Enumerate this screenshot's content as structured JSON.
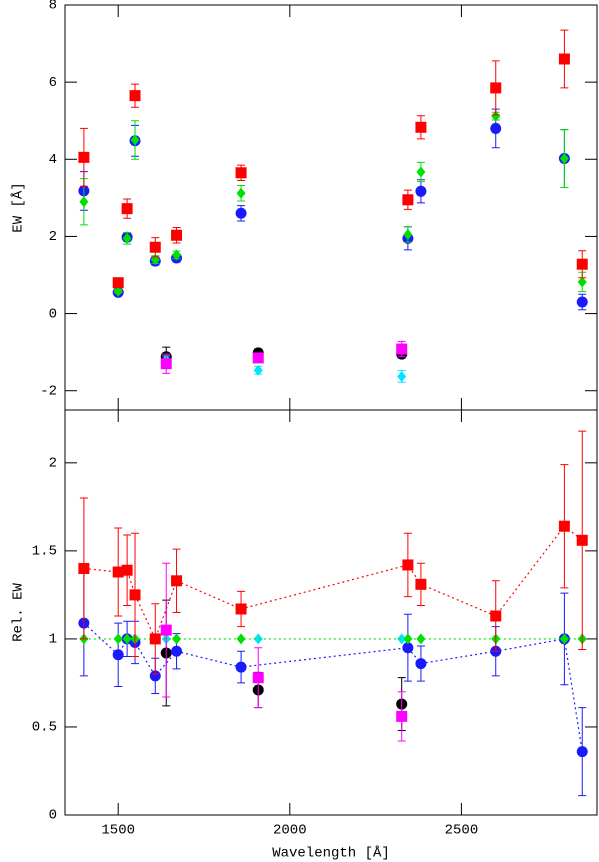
{
  "chart_data": [
    {
      "type": "scatter",
      "ylabel": "EW [Å]",
      "xlim": [
        1345,
        2895
      ],
      "xticks": [
        1500,
        2000,
        2500
      ],
      "ylim": [
        -2.5,
        8
      ],
      "yticks": [
        -2,
        0,
        2,
        4,
        6,
        8
      ],
      "series": [
        {
          "color": "#000000",
          "marker": "circle",
          "x": [
            1640,
            1908,
            2326
          ],
          "values": [
            -1.12,
            -1.02,
            -1.05
          ],
          "errors": [
            0.25,
            0.1,
            0.1
          ]
        },
        {
          "color": "#00e5ff",
          "marker": "diamond",
          "x": [
            1640,
            1908,
            2326
          ],
          "values": [
            -1.2,
            -1.47,
            -1.63
          ],
          "errors": [
            0.1,
            0.1,
            0.15
          ]
        },
        {
          "color": "#ff00ff",
          "marker": "square",
          "x": [
            1640,
            1908,
            2326
          ],
          "values": [
            -1.3,
            -1.15,
            -0.92
          ],
          "errors": [
            0.25,
            0.1,
            0.2
          ]
        },
        {
          "color": "#1a1aff",
          "marker": "circle",
          "x": [
            1400,
            1500,
            1526,
            1549,
            1608,
            1670,
            1858,
            2344,
            2382,
            2600,
            2800,
            2852
          ],
          "values": [
            3.18,
            0.55,
            1.98,
            4.48,
            1.36,
            1.44,
            2.6,
            1.95,
            3.17,
            4.8,
            4.02,
            0.3
          ],
          "errors": [
            0.5,
            0.05,
            0.1,
            0.4,
            0.1,
            0.1,
            0.2,
            0.3,
            0.3,
            0.5,
            0.75,
            0.2
          ]
        },
        {
          "color": "#00e000",
          "marker": "diamond",
          "x": [
            1400,
            1500,
            1526,
            1549,
            1608,
            1670,
            1858,
            2344,
            2382,
            2600,
            2800,
            2852
          ],
          "values": [
            2.9,
            0.58,
            1.95,
            4.5,
            1.4,
            1.52,
            3.12,
            2.05,
            3.67,
            5.12,
            4.02,
            0.82
          ],
          "errors": [
            0.6,
            0.05,
            0.15,
            0.5,
            0.1,
            0.1,
            0.2,
            0.2,
            0.25,
            0.1,
            0.75,
            0.25
          ]
        },
        {
          "color": "#ff0000",
          "marker": "square",
          "x": [
            1400,
            1500,
            1526,
            1549,
            1608,
            1670,
            1858,
            2344,
            2382,
            2600,
            2800,
            2852
          ],
          "values": [
            4.05,
            0.8,
            2.72,
            5.65,
            1.72,
            2.03,
            3.65,
            2.95,
            4.83,
            5.85,
            6.6,
            1.28
          ],
          "errors": [
            0.75,
            0.05,
            0.25,
            0.3,
            0.25,
            0.2,
            0.2,
            0.25,
            0.3,
            0.7,
            0.75,
            0.35
          ]
        }
      ]
    },
    {
      "type": "scatter",
      "ylabel": "Rel. EW",
      "xlabel": "Wavelength [Å]",
      "xlim": [
        1345,
        2895
      ],
      "xticks": [
        1500,
        2000,
        2500
      ],
      "ylim": [
        0,
        2.3
      ],
      "yticks": [
        0,
        0.5,
        1,
        1.5,
        2
      ],
      "series": [
        {
          "color": "#000000",
          "marker": "circle",
          "x": [
            1640,
            1908,
            2326
          ],
          "values": [
            0.92,
            0.71,
            0.63
          ],
          "errors": [
            0.3,
            0.1,
            0.15
          ]
        },
        {
          "color": "#00e5ff",
          "marker": "diamond",
          "x": [
            1640,
            1908,
            2326
          ],
          "values": [
            1.0,
            1.0,
            1.0
          ],
          "errors": [
            0.0,
            0.0,
            0.0
          ]
        },
        {
          "color": "#ff00ff",
          "marker": "square",
          "x": [
            1640,
            1908,
            2326
          ],
          "values": [
            1.05,
            0.78,
            0.56
          ],
          "errors": [
            0.38,
            0.17,
            0.14
          ]
        },
        {
          "color": "#1a1aff",
          "marker": "circle",
          "line": true,
          "x": [
            1400,
            1500,
            1526,
            1549,
            1608,
            1670,
            1858,
            2344,
            2382,
            2600,
            2800,
            2852
          ],
          "values": [
            1.09,
            0.91,
            1.0,
            0.98,
            0.79,
            0.93,
            0.84,
            0.95,
            0.86,
            0.93,
            1.0,
            0.36
          ],
          "errors": [
            0.3,
            0.18,
            0.1,
            0.12,
            0.1,
            0.1,
            0.09,
            0.19,
            0.1,
            0.14,
            0.26,
            0.25
          ]
        },
        {
          "color": "#00e000",
          "marker": "diamond",
          "line": true,
          "x": [
            1400,
            1500,
            1526,
            1549,
            1608,
            1670,
            1858,
            2344,
            2382,
            2600,
            2800,
            2852
          ],
          "values": [
            1,
            1,
            1,
            1,
            1,
            1,
            1,
            1,
            1,
            1,
            1,
            1
          ],
          "errors": [
            0,
            0,
            0,
            0,
            0,
            0,
            0,
            0,
            0,
            0,
            0,
            0
          ]
        },
        {
          "color": "#ff0000",
          "marker": "square",
          "line": true,
          "x": [
            1400,
            1500,
            1526,
            1549,
            1608,
            1670,
            1858,
            2344,
            2382,
            2600,
            2800,
            2852
          ],
          "values": [
            1.4,
            1.38,
            1.39,
            1.25,
            1.0,
            1.33,
            1.17,
            1.42,
            1.31,
            1.13,
            1.64,
            1.56
          ],
          "errors": [
            0.4,
            0.25,
            0.2,
            0.35,
            0.2,
            0.18,
            0.1,
            0.18,
            0.12,
            0.2,
            0.35,
            0.62
          ]
        }
      ]
    }
  ]
}
